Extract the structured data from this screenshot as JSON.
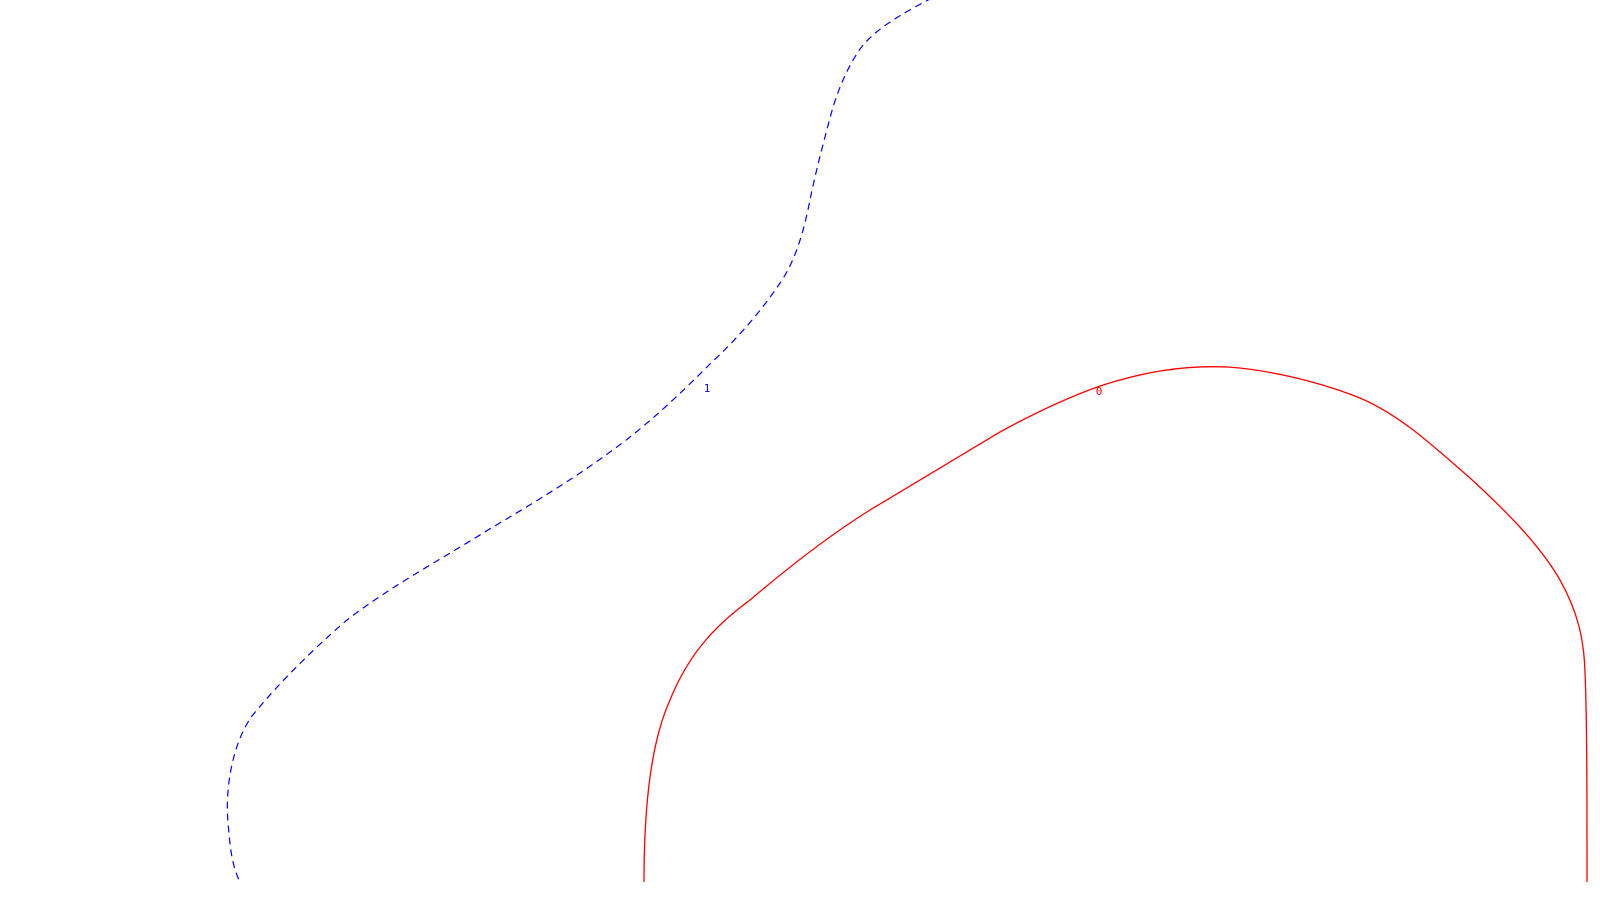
{
  "contours": {
    "line_one": {
      "label": "1",
      "color": "#0000ff",
      "style": "dashed"
    },
    "line_zero": {
      "label": "0",
      "color": "#ff0000",
      "style": "solid"
    }
  }
}
